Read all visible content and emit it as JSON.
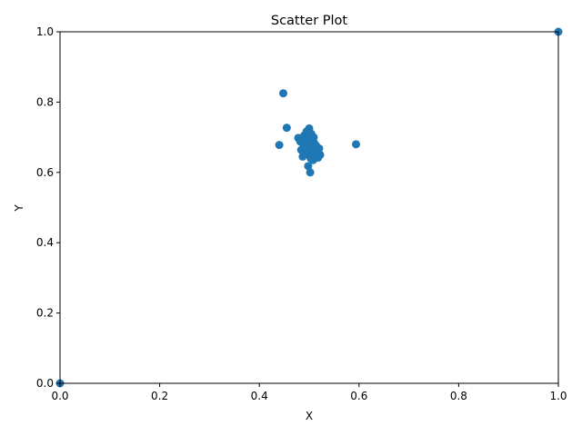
{
  "chart_data": {
    "type": "scatter",
    "title": "Scatter Plot",
    "xlabel": "X",
    "ylabel": "Y",
    "xlim": [
      0,
      1
    ],
    "ylim": [
      0,
      1
    ],
    "xticks": [
      "0.0",
      "0.2",
      "0.4",
      "0.6",
      "0.8",
      "1.0"
    ],
    "yticks": [
      "0.0",
      "0.2",
      "0.4",
      "0.6",
      "0.8",
      "1.0"
    ],
    "grid": false,
    "marker_color": "#1f77b4",
    "points": [
      {
        "x": 0.0,
        "y": 0.0
      },
      {
        "x": 1.0,
        "y": 1.0
      },
      {
        "x": 0.448,
        "y": 0.825
      },
      {
        "x": 0.455,
        "y": 0.727
      },
      {
        "x": 0.44,
        "y": 0.678
      },
      {
        "x": 0.594,
        "y": 0.68
      },
      {
        "x": 0.478,
        "y": 0.698
      },
      {
        "x": 0.482,
        "y": 0.688
      },
      {
        "x": 0.484,
        "y": 0.664
      },
      {
        "x": 0.487,
        "y": 0.645
      },
      {
        "x": 0.49,
        "y": 0.705
      },
      {
        "x": 0.492,
        "y": 0.682
      },
      {
        "x": 0.493,
        "y": 0.66
      },
      {
        "x": 0.495,
        "y": 0.717
      },
      {
        "x": 0.496,
        "y": 0.695
      },
      {
        "x": 0.497,
        "y": 0.672
      },
      {
        "x": 0.498,
        "y": 0.65
      },
      {
        "x": 0.498,
        "y": 0.618
      },
      {
        "x": 0.5,
        "y": 0.725
      },
      {
        "x": 0.501,
        "y": 0.7
      },
      {
        "x": 0.502,
        "y": 0.68
      },
      {
        "x": 0.502,
        "y": 0.66
      },
      {
        "x": 0.503,
        "y": 0.64
      },
      {
        "x": 0.502,
        "y": 0.6
      },
      {
        "x": 0.505,
        "y": 0.69
      },
      {
        "x": 0.506,
        "y": 0.67
      },
      {
        "x": 0.507,
        "y": 0.652
      },
      {
        "x": 0.508,
        "y": 0.635
      },
      {
        "x": 0.51,
        "y": 0.684
      },
      {
        "x": 0.511,
        "y": 0.662
      },
      {
        "x": 0.512,
        "y": 0.645
      },
      {
        "x": 0.514,
        "y": 0.676
      },
      {
        "x": 0.516,
        "y": 0.658
      },
      {
        "x": 0.518,
        "y": 0.642
      },
      {
        "x": 0.52,
        "y": 0.668
      },
      {
        "x": 0.522,
        "y": 0.65
      },
      {
        "x": 0.494,
        "y": 0.67
      },
      {
        "x": 0.489,
        "y": 0.675
      },
      {
        "x": 0.504,
        "y": 0.71
      },
      {
        "x": 0.509,
        "y": 0.7
      }
    ]
  }
}
